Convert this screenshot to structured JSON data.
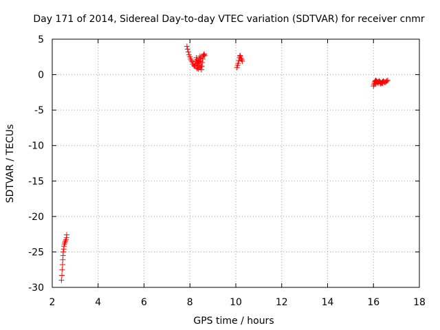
{
  "chart_data": {
    "type": "scatter",
    "title": "Day 171 of 2014, Sidereal Day-to-day VTEC variation (SDTVAR) for receiver cnmr",
    "xlabel": "GPS time / hours",
    "ylabel": "SDTVAR / TECUs",
    "xlim": [
      2,
      18
    ],
    "ylim": [
      -30,
      5
    ],
    "xticks": [
      2,
      4,
      6,
      8,
      10,
      12,
      14,
      16,
      18
    ],
    "yticks": [
      5,
      0,
      -5,
      -10,
      -15,
      -20,
      -25,
      -30
    ],
    "grid": true,
    "marker": "+",
    "color": "#ff0000",
    "series": [
      {
        "name": "SDTVAR",
        "x": [
          2.4,
          2.42,
          2.43,
          2.45,
          2.46,
          2.47,
          2.48,
          2.5,
          2.51,
          2.53,
          2.55,
          2.57,
          2.6,
          2.62,
          2.63,
          7.87,
          7.9,
          7.93,
          7.96,
          8.0,
          8.03,
          8.06,
          8.1,
          8.13,
          8.17,
          8.2,
          8.23,
          8.26,
          8.28,
          8.3,
          8.32,
          8.34,
          8.36,
          8.38,
          8.4,
          8.42,
          8.44,
          8.46,
          8.48,
          8.5,
          8.52,
          8.54,
          8.56,
          8.58,
          8.6,
          8.62,
          8.64,
          8.36,
          8.4,
          8.44,
          8.48,
          8.3,
          8.34,
          10.05,
          10.08,
          10.1,
          10.13,
          10.16,
          10.18,
          10.2,
          10.23,
          10.26,
          10.28,
          16.0,
          16.02,
          16.04,
          16.06,
          16.08,
          16.1,
          16.13,
          16.16,
          16.19,
          16.22,
          16.25,
          16.28,
          16.31,
          16.34,
          16.37,
          16.4,
          16.43,
          16.46,
          16.5,
          16.54,
          16.58,
          16.62,
          16.1,
          16.2,
          16.3,
          16.4,
          16.5
        ],
        "y": [
          -29.0,
          -28.3,
          -27.5,
          -26.8,
          -26.1,
          -25.5,
          -25.0,
          -24.6,
          -24.2,
          -23.9,
          -23.7,
          -23.5,
          -23.3,
          -23.0,
          -22.6,
          4.0,
          3.6,
          3.2,
          2.8,
          2.5,
          2.2,
          2.0,
          1.8,
          1.5,
          1.3,
          1.2,
          1.4,
          1.9,
          2.4,
          2.1,
          1.6,
          1.0,
          0.8,
          1.3,
          1.8,
          2.3,
          2.6,
          1.9,
          1.2,
          0.7,
          1.2,
          1.7,
          2.2,
          2.6,
          2.8,
          2.9,
          2.7,
          2.0,
          1.5,
          1.0,
          2.4,
          0.9,
          1.7,
          1.0,
          1.3,
          1.6,
          2.0,
          2.4,
          2.7,
          2.6,
          2.3,
          2.1,
          1.9,
          -1.6,
          -1.4,
          -1.2,
          -1.0,
          -0.9,
          -0.8,
          -0.9,
          -1.0,
          -1.1,
          -1.0,
          -0.9,
          -1.0,
          -1.1,
          -1.2,
          -1.1,
          -1.0,
          -0.9,
          -1.0,
          -1.1,
          -1.0,
          -0.9,
          -0.8,
          -1.3,
          -1.2,
          -1.3,
          -1.2,
          -1.1
        ]
      }
    ]
  }
}
